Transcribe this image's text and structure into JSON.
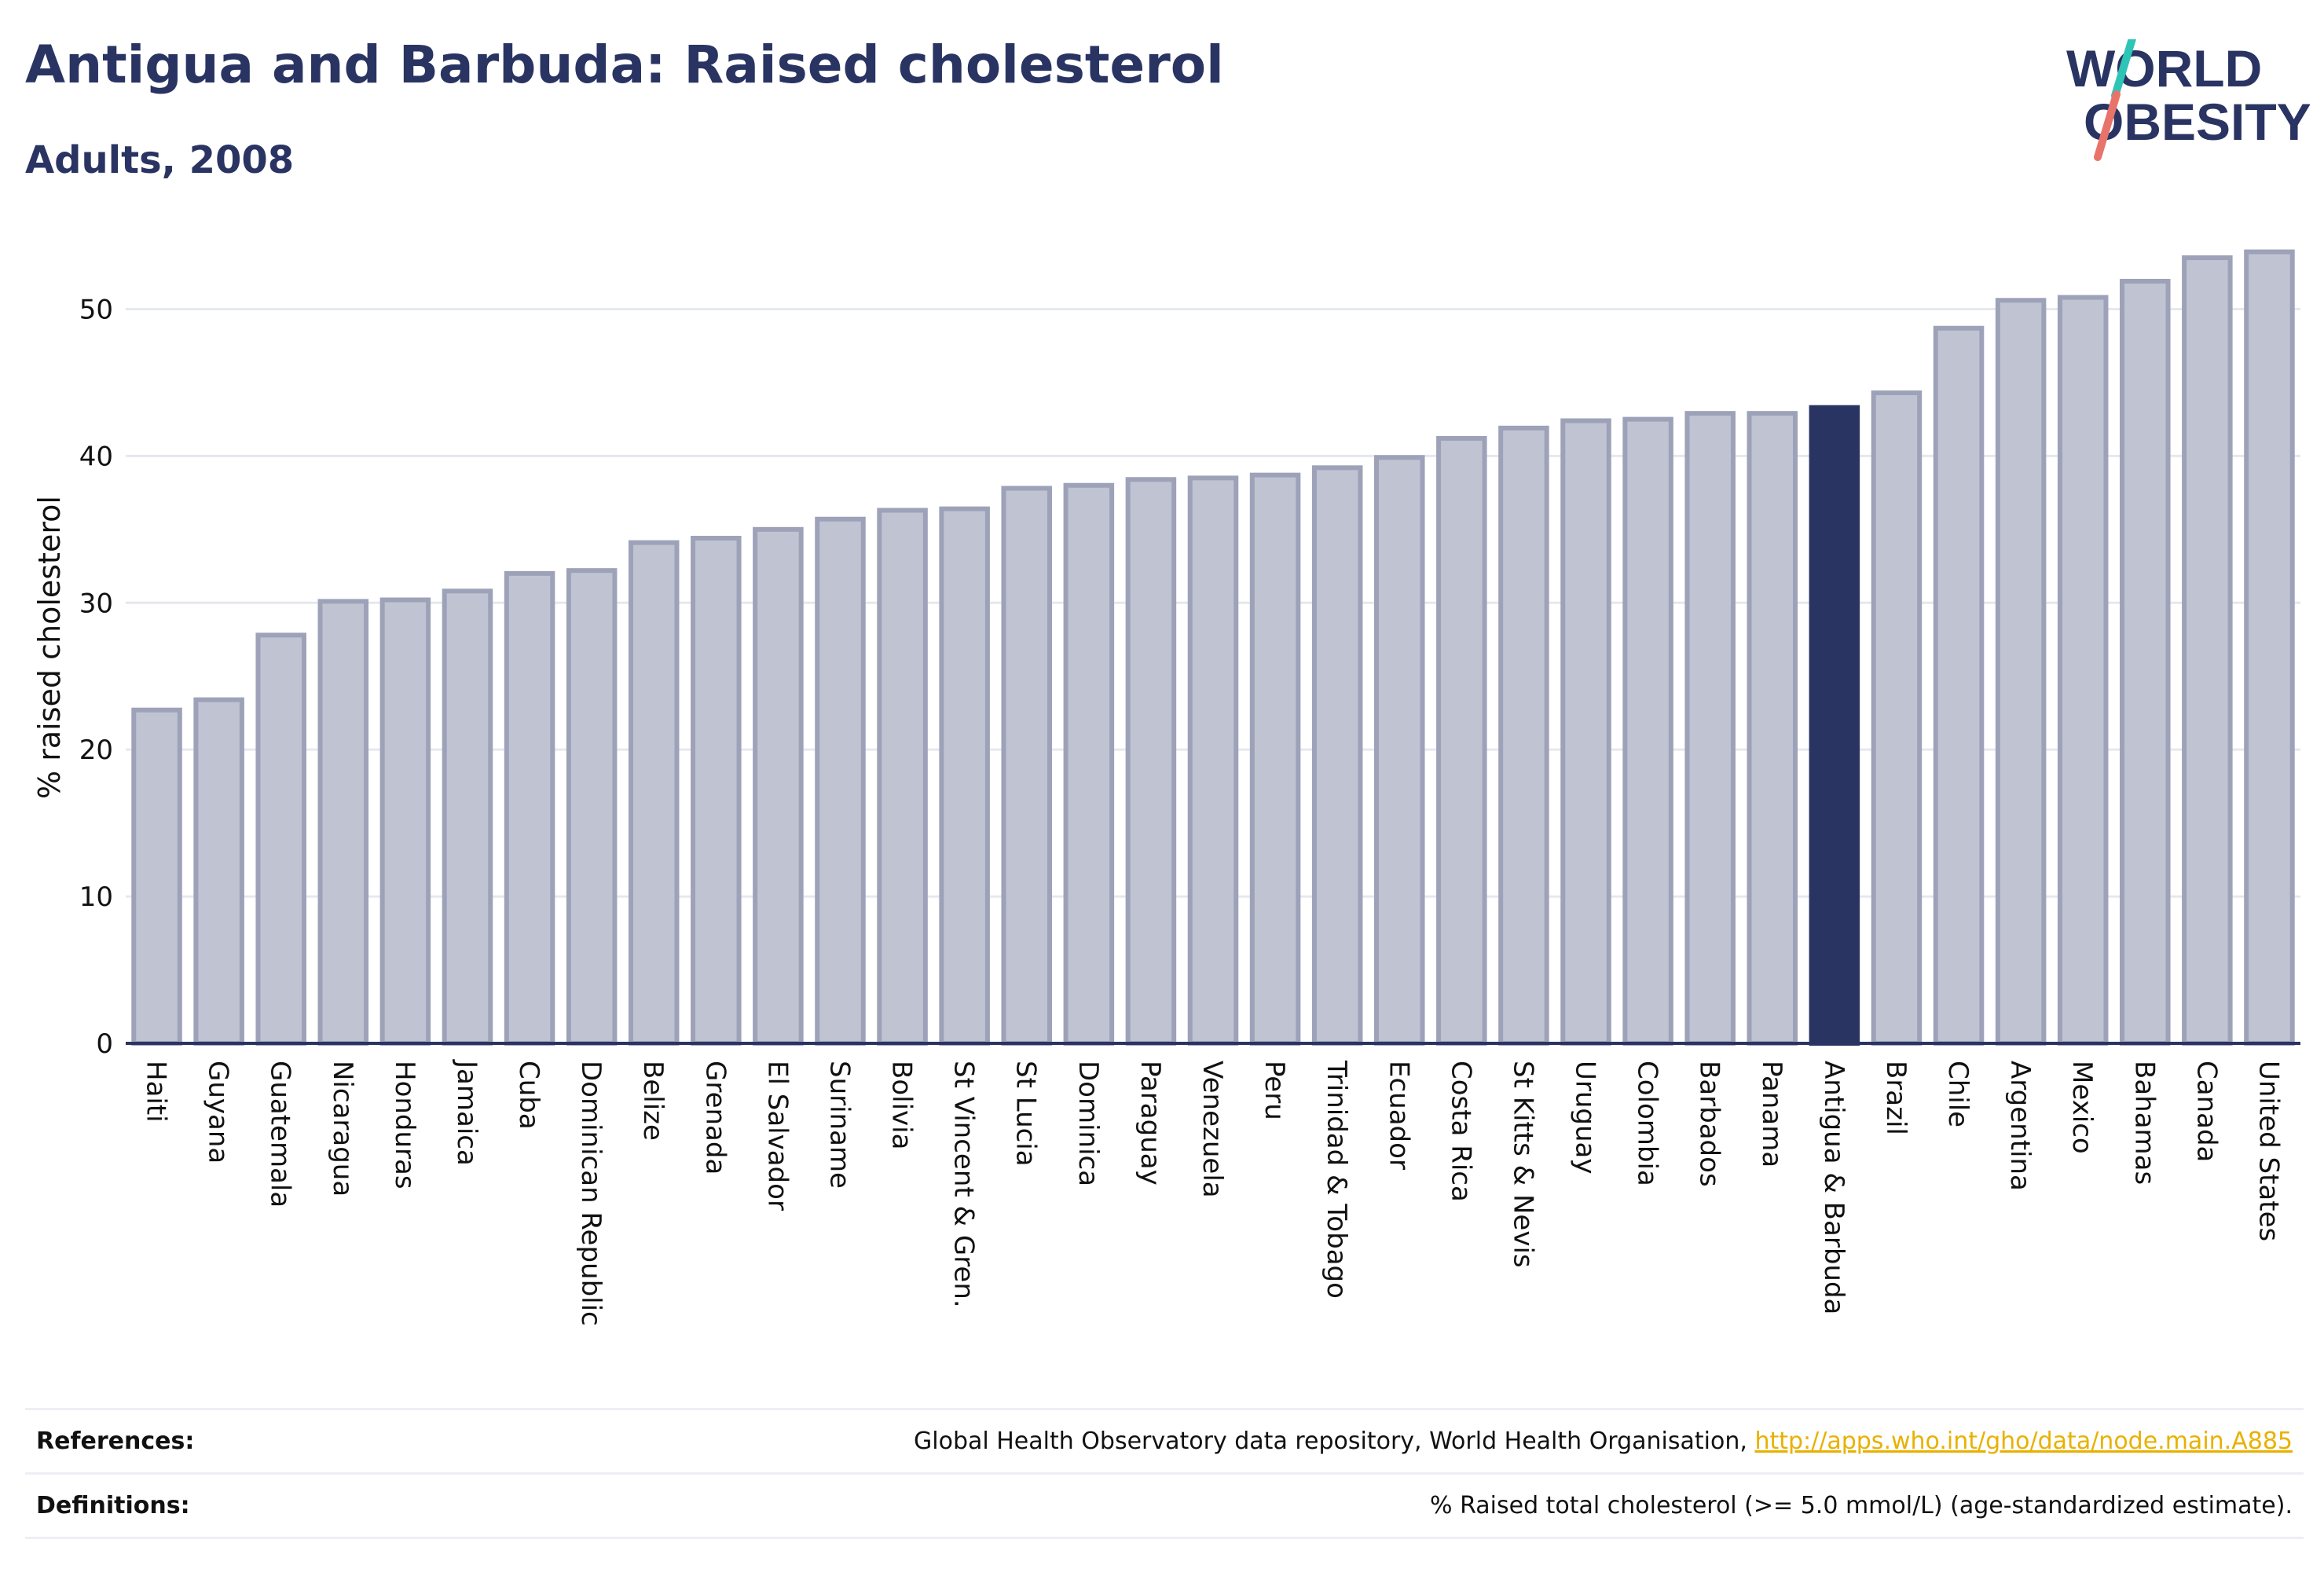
{
  "header": {
    "title": "Antigua and Barbuda: Raised cholesterol",
    "subtitle": "Adults, 2008"
  },
  "logo": {
    "line1": "WORLD",
    "line2": "OBESITY",
    "colors": {
      "text": "#2a3462",
      "slash_top": "#2ec4b6",
      "slash_bottom": "#e8736a"
    }
  },
  "footer": {
    "references_label": "References:",
    "references_text": "Global Health Observatory data repository, World Health Organisation, ",
    "references_link": "http://apps.who.int/gho/data/node.main.A885",
    "definitions_label": "Definitions:",
    "definitions_text": "% Raised total cholesterol (>= 5.0 mmol/L) (age-standardized estimate)."
  },
  "chart_data": {
    "type": "bar",
    "ylabel": "% raised cholesterol",
    "ylim": [
      0,
      55
    ],
    "yticks": [
      0,
      10,
      20,
      30,
      40,
      50
    ],
    "grid": true,
    "highlight": "Antigua & Barbuda",
    "colors": {
      "bar": "#c0c3d1",
      "bar_edge": "#9da2b9",
      "highlight": "#2a3462",
      "grid": "#e6e8ef",
      "axis": "#2a3462"
    },
    "categories": [
      "Haiti",
      "Guyana",
      "Guatemala",
      "Nicaragua",
      "Honduras",
      "Jamaica",
      "Cuba",
      "Dominican Republic",
      "Belize",
      "Grenada",
      "El Salvador",
      "Suriname",
      "Bolivia",
      "St Vincent & Gren.",
      "St Lucia",
      "Dominica",
      "Paraguay",
      "Venezuela",
      "Peru",
      "Trinidad & Tobago",
      "Ecuador",
      "Costa Rica",
      "St Kitts & Nevis",
      "Uruguay",
      "Colombia",
      "Barbados",
      "Panama",
      "Antigua & Barbuda",
      "Brazil",
      "Chile",
      "Argentina",
      "Mexico",
      "Bahamas",
      "Canada",
      "United States"
    ],
    "values": [
      22.7,
      23.4,
      27.8,
      30.1,
      30.2,
      30.8,
      32.0,
      32.2,
      34.1,
      34.4,
      35.0,
      35.7,
      36.3,
      36.4,
      37.8,
      38.0,
      38.4,
      38.5,
      38.7,
      39.2,
      39.9,
      41.2,
      41.9,
      42.4,
      42.5,
      42.9,
      42.9,
      43.3,
      44.3,
      48.7,
      50.6,
      50.8,
      51.9,
      53.5,
      53.9
    ]
  }
}
